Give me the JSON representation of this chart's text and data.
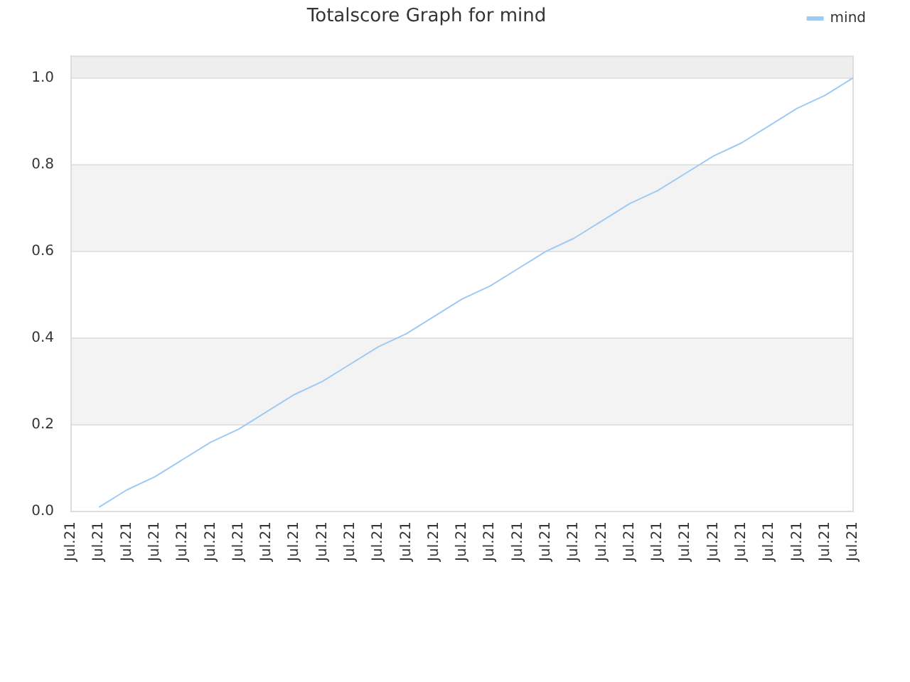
{
  "chart_data": {
    "type": "line",
    "title": "Totalscore Graph for mind",
    "categories": [
      "Jul.21",
      "Jul.21",
      "Jul.21",
      "Jul.21",
      "Jul.21",
      "Jul.21",
      "Jul.21",
      "Jul.21",
      "Jul.21",
      "Jul.21",
      "Jul.21",
      "Jul.21",
      "Jul.21",
      "Jul.21",
      "Jul.21",
      "Jul.21",
      "Jul.21",
      "Jul.21",
      "Jul.21",
      "Jul.21",
      "Jul.21",
      "Jul.21",
      "Jul.21",
      "Jul.21",
      "Jul.21",
      "Jul.21",
      "Jul.21",
      "Jul.21",
      "Jul.21"
    ],
    "ylim": [
      0,
      1.05
    ],
    "yticks": [
      {
        "value": 0,
        "label": "0.0"
      },
      0.2,
      0.4,
      0.6,
      0.8,
      {
        "value": 1,
        "label": "1.0"
      }
    ],
    "series": [
      {
        "name": "mind",
        "color": "#9ecaf4",
        "values": [
          null,
          0.01,
          0.05,
          0.08,
          0.12,
          0.16,
          0.19,
          0.23,
          0.27,
          0.3,
          0.34,
          0.38,
          0.41,
          0.45,
          0.49,
          0.52,
          0.56,
          0.6,
          0.63,
          0.67,
          0.71,
          0.74,
          0.78,
          0.82,
          0.85,
          0.89,
          0.93,
          0.96,
          1
        ]
      }
    ],
    "grid": "y",
    "legend": "top right",
    "marker": "none",
    "bands": [
      {
        "axis": "y",
        "from": 0.2,
        "to": 0.4,
        "color": "#f3f3f3"
      },
      {
        "axis": "y",
        "from": 0.6,
        "to": 0.8,
        "color": "#f3f3f3"
      },
      {
        "axis": "y",
        "from": 1,
        "to": 1.05,
        "color": "#eeeeee"
      }
    ]
  }
}
